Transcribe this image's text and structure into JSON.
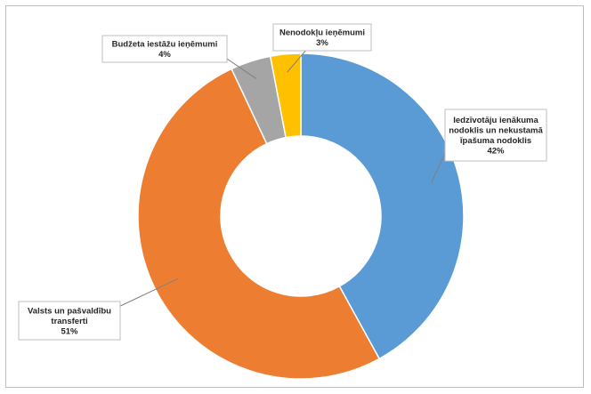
{
  "chart_data": {
    "type": "donut",
    "title": "",
    "legend": "none",
    "slices": [
      {
        "label_lines": [
          "Iedzīvotāju ienākuma",
          "nodoklis un nekustamā",
          "īpašuma nodoklis"
        ],
        "value": 42,
        "value_label": "42%",
        "color": "#5b9bd5"
      },
      {
        "label_lines": [
          "Valsts un pašvaldību",
          "transferti"
        ],
        "value": 51,
        "value_label": "51%",
        "color": "#ed7d31"
      },
      {
        "label_lines": [
          "Budžeta iestāžu ieņēmumi"
        ],
        "value": 4,
        "value_label": "4%",
        "color": "#a5a5a5"
      },
      {
        "label_lines": [
          "Nenodokļu ieņēmumi"
        ],
        "value": 3,
        "value_label": "3%",
        "color": "#ffc000"
      }
    ]
  }
}
